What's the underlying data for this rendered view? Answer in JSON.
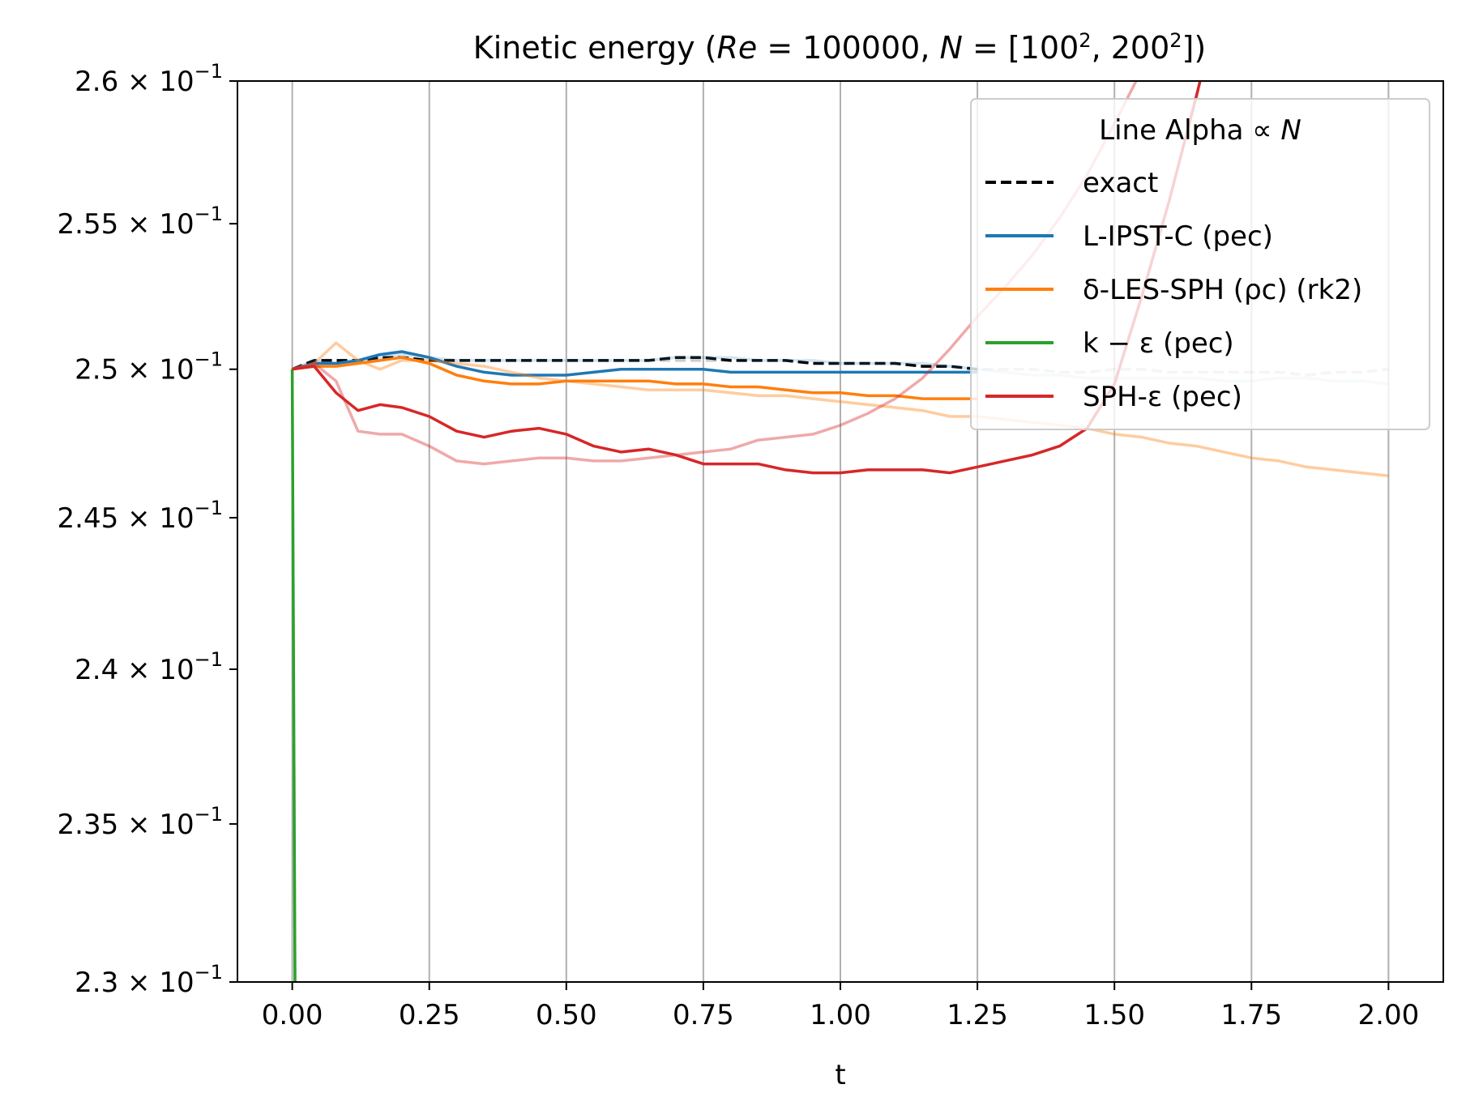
{
  "chart_data": {
    "type": "line",
    "title": "Kinetic energy  (Re = 100000, N = [100², 200²])",
    "xlabel": "t",
    "ylabel": "",
    "xlim": [
      -0.1,
      2.1
    ],
    "ylim": [
      0.23,
      0.26
    ],
    "yscale": "log",
    "grid": "x-only",
    "x_ticks": [
      0.0,
      0.25,
      0.5,
      0.75,
      1.0,
      1.25,
      1.5,
      1.75,
      2.0
    ],
    "x_tick_labels": [
      "0.00",
      "0.25",
      "0.50",
      "0.75",
      "1.00",
      "1.25",
      "1.50",
      "1.75",
      "2.00"
    ],
    "y_ticks": [
      0.23,
      0.235,
      0.24,
      0.245,
      0.25,
      0.255,
      0.26
    ],
    "y_tick_labels": [
      {
        "mantissa": "2.3",
        "exp": "−1"
      },
      {
        "mantissa": "2.35",
        "exp": "−1"
      },
      {
        "mantissa": "2.4",
        "exp": "−1"
      },
      {
        "mantissa": "2.45",
        "exp": "−1"
      },
      {
        "mantissa": "2.5",
        "exp": "−1"
      },
      {
        "mantissa": "2.55",
        "exp": "−1"
      },
      {
        "mantissa": "2.6",
        "exp": "−1"
      }
    ],
    "legend": {
      "title": "Line Alpha ∝ N",
      "placement": "top-right",
      "entries": [
        {
          "label": "exact",
          "color": "#000000",
          "dashed": true
        },
        {
          "label": "L-IPST-C (pec)",
          "color": "#1f77b4",
          "dashed": false
        },
        {
          "label": "δ-LES-SPH (ρc) (rk2)",
          "color": "#ff7f0e",
          "dashed": false
        },
        {
          "label": "k − ε (pec)",
          "color": "#2ca02c",
          "dashed": false
        },
        {
          "label": "SPH-ε (pec)",
          "color": "#d62728",
          "dashed": false
        }
      ]
    },
    "series": [
      {
        "group": "exact",
        "N": "100²",
        "color": "#000000",
        "alpha": 0.2,
        "dashed": true,
        "x": [
          0,
          0.04,
          0.08,
          0.12,
          0.16,
          0.2,
          0.25,
          0.3,
          0.35,
          0.4,
          0.45,
          0.5,
          0.55,
          0.6,
          0.65,
          0.7,
          0.75,
          0.8,
          0.85,
          0.9,
          0.95,
          1.0,
          1.05,
          1.1,
          1.15,
          1.2,
          1.25,
          1.3,
          1.35,
          1.4,
          1.45,
          1.5,
          1.55,
          1.6,
          1.65,
          1.7,
          1.75,
          1.8,
          1.85,
          1.9,
          1.95,
          2.0
        ],
        "y": [
          0.25,
          0.2503,
          0.2503,
          0.2503,
          0.2504,
          0.2504,
          0.2503,
          0.2503,
          0.2503,
          0.2503,
          0.2503,
          0.2503,
          0.2503,
          0.2503,
          0.2503,
          0.2503,
          0.2503,
          0.2503,
          0.2503,
          0.2503,
          0.2502,
          0.2502,
          0.2502,
          0.2502,
          0.2501,
          0.2501,
          0.25,
          0.25,
          0.25,
          0.2499,
          0.2499,
          0.25,
          0.25,
          0.2499,
          0.2499,
          0.2499,
          0.2499,
          0.2499,
          0.2498,
          0.2499,
          0.2499,
          0.25
        ]
      },
      {
        "group": "exact",
        "N": "200²",
        "color": "#000000",
        "alpha": 1.0,
        "dashed": true,
        "x": [
          0,
          0.04,
          0.08,
          0.12,
          0.16,
          0.2,
          0.25,
          0.3,
          0.35,
          0.4,
          0.45,
          0.5,
          0.55,
          0.6,
          0.65,
          0.7,
          0.75,
          0.8,
          0.85,
          0.9,
          0.95,
          1.0,
          1.05,
          1.1,
          1.15,
          1.2,
          1.25
        ],
        "y": [
          0.25,
          0.2503,
          0.2503,
          0.2503,
          0.2504,
          0.2504,
          0.2503,
          0.2503,
          0.2503,
          0.2503,
          0.2503,
          0.2503,
          0.2503,
          0.2503,
          0.2503,
          0.2504,
          0.2504,
          0.2503,
          0.2503,
          0.2503,
          0.2502,
          0.2502,
          0.2502,
          0.2502,
          0.2501,
          0.2501,
          0.25
        ]
      },
      {
        "group": "L-IPST-C (pec)",
        "N": "100²",
        "color": "#1f77b4",
        "alpha": 0.2,
        "dashed": false,
        "x": [
          0,
          0.04,
          0.08,
          0.12,
          0.16,
          0.2,
          0.25,
          0.3,
          0.35,
          0.4,
          0.45,
          0.5,
          0.55,
          0.6,
          0.65,
          0.7,
          0.75,
          0.8,
          0.85,
          0.9,
          0.95,
          1.0,
          1.05,
          1.1,
          1.15,
          1.2,
          1.25,
          1.3,
          1.35,
          1.4,
          1.45,
          1.5,
          1.55,
          1.6,
          1.65,
          1.7,
          1.75,
          1.8,
          1.85,
          1.9,
          1.95,
          2.0
        ],
        "y": [
          0.25,
          0.2503,
          0.2502,
          0.2502,
          0.2504,
          0.2505,
          0.2504,
          0.2503,
          0.2503,
          0.2503,
          0.2503,
          0.2503,
          0.2503,
          0.2503,
          0.2503,
          0.2504,
          0.2504,
          0.2504,
          0.2503,
          0.2503,
          0.2503,
          0.2502,
          0.2502,
          0.2502,
          0.2502,
          0.2501,
          0.25,
          0.2499,
          0.2498,
          0.2498,
          0.2497,
          0.2497,
          0.2497,
          0.2497,
          0.2497,
          0.2496,
          0.2496,
          0.2497,
          0.2497,
          0.2496,
          0.2496,
          0.2495
        ]
      },
      {
        "group": "L-IPST-C (pec)",
        "N": "200²",
        "color": "#1f77b4",
        "alpha": 1.0,
        "dashed": false,
        "x": [
          0,
          0.04,
          0.08,
          0.12,
          0.16,
          0.2,
          0.25,
          0.3,
          0.35,
          0.4,
          0.45,
          0.5,
          0.55,
          0.6,
          0.65,
          0.7,
          0.75,
          0.8,
          0.85,
          0.9,
          0.95,
          1.0,
          1.05,
          1.1,
          1.15,
          1.2,
          1.25
        ],
        "y": [
          0.25,
          0.2502,
          0.2502,
          0.2503,
          0.2505,
          0.2506,
          0.2504,
          0.2501,
          0.2499,
          0.2498,
          0.2498,
          0.2498,
          0.2499,
          0.25,
          0.25,
          0.25,
          0.25,
          0.2499,
          0.2499,
          0.2499,
          0.2499,
          0.2499,
          0.2499,
          0.2499,
          0.2499,
          0.2499,
          0.2499
        ]
      },
      {
        "group": "δ-LES-SPH (ρc) (rk2)",
        "N": "100²",
        "color": "#ff7f0e",
        "alpha": 0.4,
        "dashed": false,
        "x": [
          0,
          0.04,
          0.08,
          0.12,
          0.16,
          0.2,
          0.25,
          0.3,
          0.35,
          0.4,
          0.45,
          0.5,
          0.55,
          0.6,
          0.65,
          0.7,
          0.75,
          0.8,
          0.85,
          0.9,
          0.95,
          1.0,
          1.05,
          1.1,
          1.15,
          1.2,
          1.25,
          1.3,
          1.35,
          1.4,
          1.45,
          1.5,
          1.55,
          1.6,
          1.65,
          1.7,
          1.75,
          1.8,
          1.85,
          1.9,
          1.95,
          2.0
        ],
        "y": [
          0.25,
          0.2502,
          0.2509,
          0.2503,
          0.25,
          0.2503,
          0.2503,
          0.2502,
          0.2501,
          0.2499,
          0.2497,
          0.2496,
          0.2495,
          0.2494,
          0.2493,
          0.2493,
          0.2493,
          0.2492,
          0.2491,
          0.2491,
          0.249,
          0.2489,
          0.2488,
          0.2487,
          0.2486,
          0.2484,
          0.2484,
          0.2483,
          0.2482,
          0.2481,
          0.248,
          0.2478,
          0.2477,
          0.2475,
          0.2474,
          0.2472,
          0.247,
          0.2469,
          0.2467,
          0.2466,
          0.2465,
          0.2464
        ]
      },
      {
        "group": "δ-LES-SPH (ρc) (rk2)",
        "N": "200²",
        "color": "#ff7f0e",
        "alpha": 1.0,
        "dashed": false,
        "x": [
          0,
          0.04,
          0.08,
          0.12,
          0.16,
          0.2,
          0.25,
          0.3,
          0.35,
          0.4,
          0.45,
          0.5,
          0.55,
          0.6,
          0.65,
          0.7,
          0.75,
          0.8,
          0.85,
          0.9,
          0.95,
          1.0,
          1.05,
          1.1,
          1.15,
          1.2,
          1.25
        ],
        "y": [
          0.25,
          0.2501,
          0.2501,
          0.2502,
          0.2503,
          0.2504,
          0.2502,
          0.2498,
          0.2496,
          0.2495,
          0.2495,
          0.2496,
          0.2496,
          0.2496,
          0.2496,
          0.2495,
          0.2495,
          0.2494,
          0.2494,
          0.2493,
          0.2492,
          0.2492,
          0.2491,
          0.2491,
          0.249,
          0.249,
          0.249
        ]
      },
      {
        "group": "k − ε (pec)",
        "N": "100²",
        "color": "#2ca02c",
        "alpha": 0.3,
        "dashed": false,
        "x": [
          0,
          0.005,
          0.01
        ],
        "y": [
          0.25,
          0.23,
          0.229
        ]
      },
      {
        "group": "k − ε (pec)",
        "N": "200²",
        "color": "#2ca02c",
        "alpha": 1.0,
        "dashed": false,
        "x": [
          0,
          0.005
        ],
        "y": [
          0.25,
          0.23
        ]
      },
      {
        "group": "SPH-ε (pec)",
        "N": "100²",
        "color": "#d62728",
        "alpha": 0.4,
        "dashed": false,
        "x": [
          0,
          0.04,
          0.08,
          0.12,
          0.16,
          0.2,
          0.25,
          0.3,
          0.35,
          0.4,
          0.45,
          0.5,
          0.55,
          0.6,
          0.65,
          0.7,
          0.75,
          0.8,
          0.85,
          0.9,
          0.95,
          1.0,
          1.05,
          1.1,
          1.15,
          1.2,
          1.25,
          1.3,
          1.35,
          1.4,
          1.45,
          1.5,
          1.55,
          1.6
        ],
        "y": [
          0.25,
          0.2502,
          0.2496,
          0.2479,
          0.2478,
          0.2478,
          0.2474,
          0.2469,
          0.2468,
          0.2469,
          0.247,
          0.247,
          0.2469,
          0.2469,
          0.247,
          0.2471,
          0.2472,
          0.2473,
          0.2476,
          0.2477,
          0.2478,
          0.2481,
          0.2485,
          0.249,
          0.2497,
          0.2507,
          0.2518,
          0.2528,
          0.2539,
          0.2552,
          0.2567,
          0.2585,
          0.2604,
          0.263
        ]
      },
      {
        "group": "SPH-ε (pec)",
        "N": "200²",
        "color": "#d62728",
        "alpha": 1.0,
        "dashed": false,
        "x": [
          0,
          0.04,
          0.08,
          0.12,
          0.16,
          0.2,
          0.25,
          0.3,
          0.35,
          0.4,
          0.45,
          0.5,
          0.55,
          0.6,
          0.65,
          0.7,
          0.75,
          0.8,
          0.85,
          0.9,
          0.95,
          1.0,
          1.05,
          1.1,
          1.15,
          1.2,
          1.25,
          1.3,
          1.35,
          1.4,
          1.45,
          1.5,
          1.55,
          1.6,
          1.65,
          1.7
        ],
        "y": [
          0.25,
          0.2501,
          0.2492,
          0.2486,
          0.2488,
          0.2487,
          0.2484,
          0.2479,
          0.2477,
          0.2479,
          0.248,
          0.2478,
          0.2474,
          0.2472,
          0.2473,
          0.2471,
          0.2468,
          0.2468,
          0.2468,
          0.2466,
          0.2465,
          0.2465,
          0.2466,
          0.2466,
          0.2466,
          0.2465,
          0.2467,
          0.2469,
          0.2471,
          0.2474,
          0.248,
          0.2495,
          0.2525,
          0.2558,
          0.2595,
          0.2635
        ]
      }
    ]
  }
}
